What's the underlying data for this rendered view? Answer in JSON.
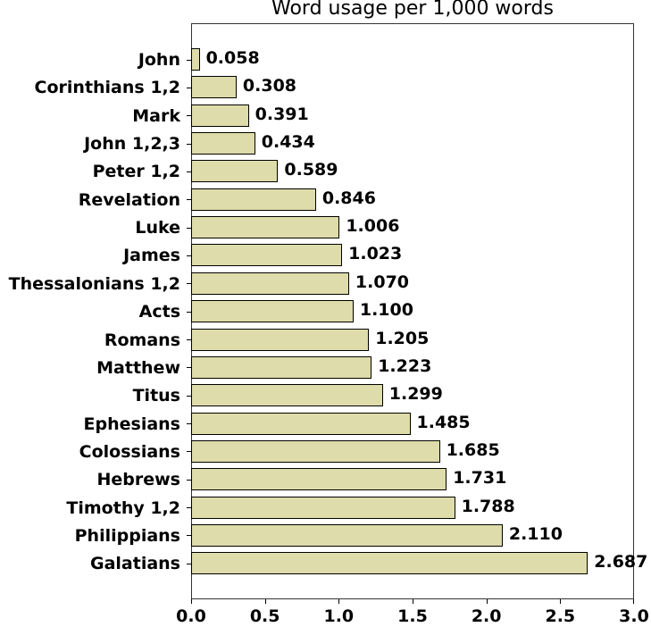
{
  "chart_data": {
    "type": "bar",
    "orientation": "horizontal",
    "title": "Word usage per 1,000 words",
    "xlabel": "",
    "ylabel": "",
    "xlim": [
      0,
      3.0
    ],
    "xticks": [
      "0.0",
      "0.5",
      "1.0",
      "1.5",
      "2.0",
      "2.5",
      "3.0"
    ],
    "grid": false,
    "legend": null,
    "bar_color": "#dddcaa",
    "categories": [
      "John",
      "Corinthians 1,2",
      "Mark",
      "John 1,2,3",
      "Peter 1,2",
      "Revelation",
      "Luke",
      "James",
      "Thessalonians 1,2",
      "Acts",
      "Romans",
      "Matthew",
      "Titus",
      "Ephesians",
      "Colossians",
      "Hebrews",
      "Timothy 1,2",
      "Philippians",
      "Galatians"
    ],
    "values": [
      0.058,
      0.308,
      0.391,
      0.434,
      0.589,
      0.846,
      1.006,
      1.023,
      1.07,
      1.1,
      1.205,
      1.223,
      1.299,
      1.485,
      1.685,
      1.731,
      1.788,
      2.11,
      2.687
    ],
    "value_labels": [
      "0.058",
      "0.308",
      "0.391",
      "0.434",
      "0.589",
      "0.846",
      "1.006",
      "1.023",
      "1.070",
      "1.100",
      "1.205",
      "1.223",
      "1.299",
      "1.485",
      "1.685",
      "1.731",
      "1.788",
      "2.110",
      "2.687"
    ]
  }
}
